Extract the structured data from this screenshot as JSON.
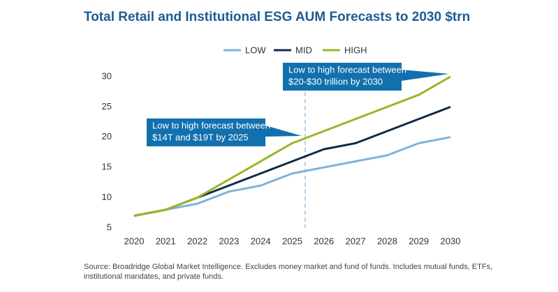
{
  "chart_data": {
    "type": "line",
    "title": "Total Retail and Institutional ESG AUM Forecasts to 2030 $trn",
    "categories": [
      "2020",
      "2021",
      "2022",
      "2023",
      "2024",
      "2025",
      "2026",
      "2027",
      "2028",
      "2029",
      "2030"
    ],
    "series": [
      {
        "name": "LOW",
        "color": "#7fb2d9",
        "values": [
          7,
          8,
          9,
          11,
          12,
          14,
          15,
          16,
          17,
          19,
          20
        ]
      },
      {
        "name": "MID",
        "color": "#0f2b4b",
        "values": [
          7,
          8,
          10,
          12,
          14,
          16,
          18,
          19,
          21,
          23,
          25
        ]
      },
      {
        "name": "HIGH",
        "color": "#9cb526",
        "values": [
          7,
          8,
          10,
          13,
          16,
          19,
          21,
          23,
          25,
          27,
          30
        ]
      }
    ],
    "ylim": [
      5,
      30
    ],
    "yticks": [
      5,
      10,
      15,
      20,
      25,
      30
    ],
    "grid": false,
    "legend": "top",
    "annotations": [
      [
        "Low to high forecast between",
        "$14T and $19T by 2025"
      ],
      [
        "Low to high forecast between",
        "$20-$30 trillion by 2030"
      ]
    ],
    "source": "Source: Broadridge Global Market Intelligence. Excludes money market and fund of funds. Includes mutual funds, ETFs, institutional mandates, and private funds."
  }
}
